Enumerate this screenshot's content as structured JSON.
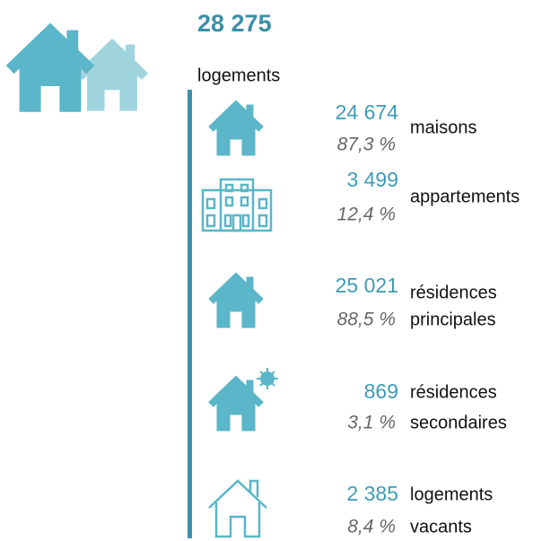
{
  "total": {
    "value": "28 275",
    "label": "logements"
  },
  "items": [
    {
      "value": "24 674",
      "percent": "87,3 %",
      "label": [
        "maisons"
      ]
    },
    {
      "value": "3 499",
      "percent": "12,4 %",
      "label": [
        "appartements"
      ]
    },
    {
      "value": "25 021",
      "percent": "88,5 %",
      "label": [
        "résidences",
        "principales"
      ]
    },
    {
      "value": "869",
      "percent": "3,1 %",
      "label": [
        "résidences",
        "secondaires"
      ]
    },
    {
      "value": "2 385",
      "percent": "8,4 %",
      "label": [
        "logements",
        "vacants"
      ]
    }
  ]
}
